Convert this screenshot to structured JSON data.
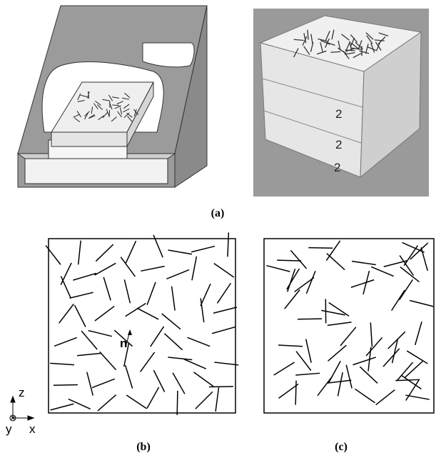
{
  "figure": {
    "panels": [
      {
        "label": "(a)"
      },
      {
        "label": "(b)",
        "normal_label": "n"
      },
      {
        "label": "(c)"
      }
    ],
    "axes": {
      "z": "z",
      "y": "y",
      "x": "x"
    }
  }
}
